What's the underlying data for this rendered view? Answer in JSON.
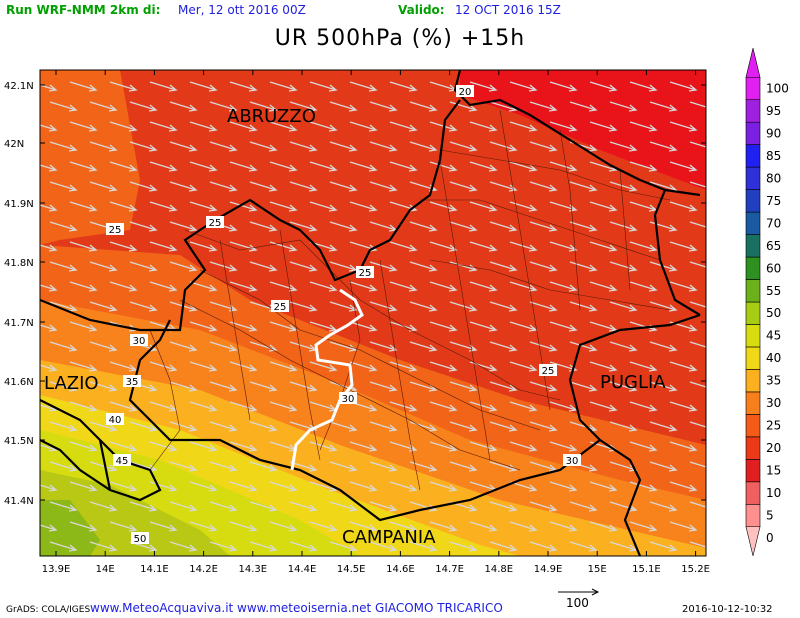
{
  "header": {
    "run_label": "Run WRF-NMM 2km di:",
    "run_date": "Mer, 12 ott 2016 00Z",
    "valid_label": "Valido:",
    "valid_date": "12 OCT 2016 15Z"
  },
  "title": "UR 500hPa (%) +15h",
  "axes": {
    "x_ticks": [
      "13.9E",
      "14E",
      "14.1E",
      "14.2E",
      "14.3E",
      "14.4E",
      "14.5E",
      "14.6E",
      "14.7E",
      "14.8E",
      "14.9E",
      "15E",
      "15.1E",
      "15.2E"
    ],
    "y_ticks": [
      "42.1N",
      "42N",
      "41.9N",
      "41.8N",
      "41.7N",
      "41.6N",
      "41.5N",
      "41.4N"
    ]
  },
  "regions": [
    {
      "name": "ABRUZZO"
    },
    {
      "name": "LAZIO"
    },
    {
      "name": "PUGLIA"
    },
    {
      "name": "CAMPANIA"
    }
  ],
  "contour_labels": [
    "20",
    "25",
    "25",
    "25",
    "25",
    "25",
    "30",
    "30",
    "30",
    "35",
    "40",
    "45",
    "50",
    "25"
  ],
  "colorbar": {
    "levels": [
      "0",
      "5",
      "10",
      "15",
      "20",
      "25",
      "30",
      "35",
      "40",
      "45",
      "50",
      "55",
      "60",
      "65",
      "70",
      "75",
      "80",
      "85",
      "90",
      "95",
      "100"
    ],
    "colors": [
      "#ffc0c0",
      "#ff9090",
      "#f06060",
      "#e02020",
      "#ea3a1a",
      "#f45a18",
      "#f8801c",
      "#fbb020",
      "#f0d818",
      "#d6dc10",
      "#a6cc14",
      "#6cb01c",
      "#2e9020",
      "#1a7060",
      "#1a5aa0",
      "#2040c0",
      "#3030d8",
      "#2020f0",
      "#7a20e0",
      "#a020e0",
      "#e020f0"
    ]
  },
  "wind_scale": {
    "label": "100"
  },
  "footer": {
    "grads": "GrADS: COLA/IGES",
    "credits": "www.MeteoAcquaviva.it www.meteoisernia.net GIACOMO TRICARICO",
    "timestamp": "2016-10-12-10:32"
  },
  "colors": {
    "accent_green": "#00a000",
    "accent_blue": "#2020e0",
    "border": "#000000"
  }
}
